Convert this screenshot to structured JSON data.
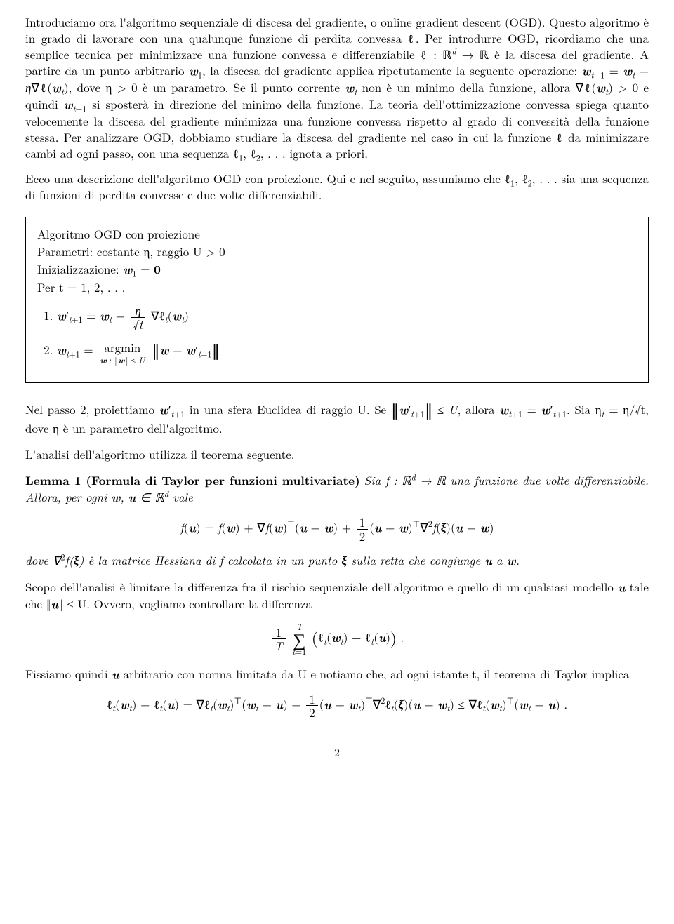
{
  "p1": "Introduciamo ora l'algoritmo sequenziale di discesa del gradiente, o online gradient descent (OGD). Questo algoritmo è in grado di lavorare con una qualunque funzione di perdita convessa ℓ. Per introdurre OGD, ricordiamo che una semplice tecnica per minimizzare una funzione convessa e differenziabile ℓ : ℝ",
  "p1b": " → ℝ è la discesa del gradiente. A partire da un punto arbitrario ",
  "p1c": ", la discesa del gradiente applica ripetutamente la seguente operazione: ",
  "p1d": ", dove η > 0 è un parametro. Se il punto corrente ",
  "p1e": " non è un minimo della funzione, allora ∇ℓ(",
  "p1f": ") > 0 e quindi ",
  "p1g": " si sposterà in direzione del minimo della funzione. La teoria dell'ottimizzazione convessa spiega quanto velocemente la discesa del gradiente minimizza una funzione convessa rispetto al grado di convessità della funzione stessa. Per analizzare OGD, dobbiamo studiare la discesa del gradiente nel caso in cui la funzione ℓ da minimizzare cambi ad ogni passo, con una sequenza ℓ",
  "p1h": ", ℓ",
  "p1i": ", . . . ignota a priori.",
  "p2a": "Ecco una descrizione dell'algoritmo OGD con proiezione. Qui e nel seguito, assumiamo che ℓ",
  "p2b": ", ℓ",
  "p2c": ", . . . sia una sequenza di funzioni di perdita convesse e due volte differenziabili.",
  "algo": {
    "title": "Algoritmo OGD con proiezione",
    "params": "Parametri: costante η, raggio U > 0",
    "init": "Inizializzazione: ",
    "loop": "Per t = 1, 2, . . ."
  },
  "p3a": "Nel passo 2, proiettiamo ",
  "p3b": " in una sfera Euclidea di raggio U. Se ",
  "p3c": ", allora ",
  "p3d": ". Sia η",
  "p3e": " = η/√t, dove η è un parametro dell'algoritmo.",
  "p4": "L'analisi dell'algoritmo utilizza il teorema seguente.",
  "lemma_head": "Lemma 1 (Formula di Taylor per funzioni multivariate)",
  "lemma_a": " Sia f : ℝ",
  "lemma_b": " → ℝ una funzione due volte differenziabile. Allora, per ogni ",
  "lemma_c": " ∈ ℝ",
  "lemma_d": " vale",
  "lemma_after_a": "dove ∇",
  "lemma_after_b": "f(",
  "lemma_after_c": ") è la matrice Hessiana di f calcolata in un punto ",
  "lemma_after_d": " sulla retta che congiunge ",
  "lemma_after_e": " a ",
  "p5a": "Scopo dell'analisi è limitare la differenza fra il rischio sequenziale dell'algoritmo e quello di un qualsiasi modello ",
  "p5b": " tale che ‖",
  "p5c": "‖ ≤ U. Ovvero, vogliamo controllare la differenza",
  "p6a": "Fissiamo quindi ",
  "p6b": " arbitrario con norma limitata da U e notiamo che, ad ogni istante t, il teorema di Taylor implica",
  "pagenum": "2"
}
